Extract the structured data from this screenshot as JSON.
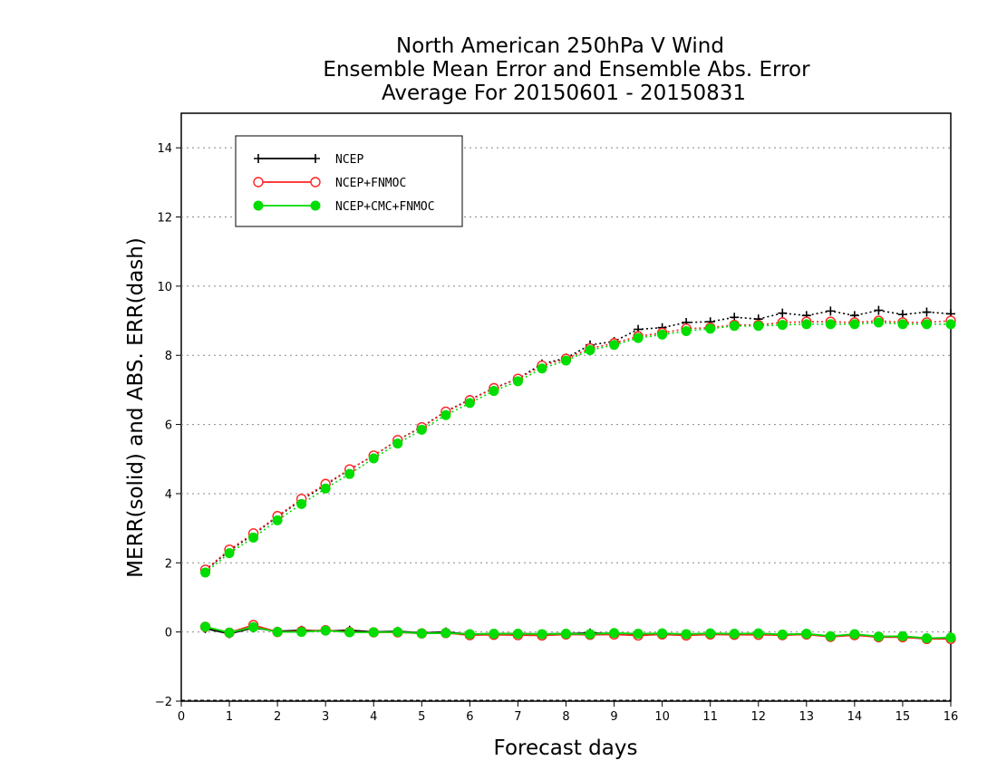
{
  "chart_data": {
    "type": "line",
    "title_lines": [
      "North American 250hPa V Wind",
      "Ensemble Mean Error and Ensemble Abs. Error",
      "Average For 20150601 - 20150831"
    ],
    "xlabel": "Forecast days",
    "ylabel": "MERR(solid) and ABS. ERR(dash)",
    "xlim": [
      0,
      16
    ],
    "ylim": [
      -2,
      15
    ],
    "xticks": [
      0,
      1,
      2,
      3,
      4,
      5,
      6,
      7,
      8,
      9,
      10,
      11,
      12,
      13,
      14,
      15,
      16
    ],
    "yticks": [
      -2,
      0,
      2,
      4,
      6,
      8,
      10,
      12,
      14
    ],
    "grid": "horizontal dotted",
    "legend_position": "top-left",
    "x": [
      0.5,
      1.0,
      1.5,
      2.0,
      2.5,
      3.0,
      3.5,
      4.0,
      4.5,
      5.0,
      5.5,
      6.0,
      6.5,
      7.0,
      7.5,
      8.0,
      8.5,
      9.0,
      9.5,
      10.0,
      10.5,
      11.0,
      11.5,
      12.0,
      12.5,
      13.0,
      13.5,
      14.0,
      14.5,
      15.0,
      15.5,
      16.0
    ],
    "series": [
      {
        "name": "NCEP",
        "color": "#000000",
        "marker": "plus",
        "merr": [
          0.1,
          -0.05,
          0.12,
          0.02,
          0.05,
          0.03,
          0.05,
          0.0,
          0.02,
          -0.03,
          0.0,
          -0.07,
          -0.05,
          -0.05,
          -0.06,
          -0.05,
          -0.03,
          -0.05,
          -0.06,
          -0.06,
          -0.07,
          -0.05,
          -0.07,
          -0.06,
          -0.09,
          -0.06,
          -0.12,
          -0.08,
          -0.13,
          -0.13,
          -0.18,
          -0.2
        ],
        "abserr": [
          1.78,
          2.35,
          2.82,
          3.33,
          3.82,
          4.25,
          4.7,
          5.1,
          5.55,
          5.93,
          6.38,
          6.72,
          7.05,
          7.33,
          7.75,
          7.92,
          8.3,
          8.4,
          8.75,
          8.8,
          8.95,
          8.97,
          9.1,
          9.05,
          9.22,
          9.15,
          9.28,
          9.15,
          9.3,
          9.18,
          9.25,
          9.2
        ]
      },
      {
        "name": "NCEP+FNMOC",
        "color": "#ff2222",
        "marker": "open-circle",
        "merr": [
          0.15,
          -0.02,
          0.2,
          0.0,
          0.02,
          0.05,
          0.0,
          -0.01,
          -0.01,
          -0.04,
          -0.03,
          -0.09,
          -0.08,
          -0.09,
          -0.1,
          -0.07,
          -0.08,
          -0.07,
          -0.1,
          -0.07,
          -0.1,
          -0.07,
          -0.08,
          -0.08,
          -0.09,
          -0.07,
          -0.14,
          -0.09,
          -0.15,
          -0.15,
          -0.2,
          -0.2
        ],
        "abserr": [
          1.8,
          2.38,
          2.85,
          3.35,
          3.85,
          4.28,
          4.7,
          5.1,
          5.55,
          5.92,
          6.37,
          6.7,
          7.05,
          7.32,
          7.7,
          7.9,
          8.2,
          8.35,
          8.55,
          8.65,
          8.77,
          8.8,
          8.88,
          8.88,
          8.95,
          8.97,
          8.97,
          8.95,
          9.0,
          8.95,
          8.95,
          9.0
        ]
      },
      {
        "name": "NCEP+CMC+FNMOC",
        "color": "#00dd00",
        "marker": "filled-circle",
        "merr": [
          0.15,
          -0.02,
          0.14,
          0.0,
          0.0,
          0.04,
          -0.01,
          -0.01,
          0.0,
          -0.04,
          -0.03,
          -0.06,
          -0.05,
          -0.05,
          -0.06,
          -0.05,
          -0.06,
          -0.03,
          -0.05,
          -0.04,
          -0.06,
          -0.04,
          -0.05,
          -0.04,
          -0.07,
          -0.05,
          -0.12,
          -0.06,
          -0.13,
          -0.12,
          -0.18,
          -0.16
        ],
        "abserr": [
          1.72,
          2.28,
          2.73,
          3.23,
          3.7,
          4.15,
          4.57,
          5.02,
          5.45,
          5.85,
          6.27,
          6.62,
          6.97,
          7.25,
          7.62,
          7.85,
          8.15,
          8.3,
          8.5,
          8.6,
          8.7,
          8.77,
          8.85,
          8.85,
          8.88,
          8.9,
          8.9,
          8.9,
          8.95,
          8.9,
          8.9,
          8.9
        ]
      }
    ]
  }
}
